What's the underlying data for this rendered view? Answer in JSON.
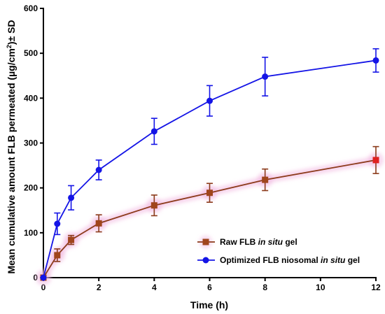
{
  "chart_data": {
    "type": "line",
    "title": "",
    "xlabel": "Time (h)",
    "ylabel_parts": [
      "Mean cumulative amount FLB permeated (µg/cm",
      "2",
      ")± SD"
    ],
    "x": [
      0,
      0.5,
      1,
      2,
      4,
      6,
      8,
      12
    ],
    "xticks": [
      0,
      2,
      4,
      6,
      8,
      10,
      12
    ],
    "yticks": [
      0,
      100,
      200,
      300,
      400,
      500,
      600
    ],
    "xlim": [
      0,
      12
    ],
    "ylim": [
      0,
      600
    ],
    "grid": false,
    "legend_position": "lower-right",
    "series": [
      {
        "name_parts": [
          {
            "text": "Raw FLB ",
            "italic": false
          },
          {
            "text": "in situ",
            "italic": true
          },
          {
            "text": " gel",
            "italic": false
          }
        ],
        "marker": "square",
        "line_color": "#8B3A1A",
        "marker_color": "#A0451C",
        "values": [
          0,
          50,
          84,
          121,
          161,
          189,
          218,
          262
        ],
        "errors": [
          0,
          14,
          10,
          19,
          23,
          21,
          24,
          30
        ]
      },
      {
        "name_parts": [
          {
            "text": "Optimized FLB niosomal ",
            "italic": false
          },
          {
            "text": "in situ",
            "italic": true
          },
          {
            "text": " gel",
            "italic": false
          }
        ],
        "marker": "circle",
        "line_color": "#1414E6",
        "marker_color": "#1414E6",
        "values": [
          0,
          120,
          178,
          240,
          326,
          394,
          448,
          484
        ],
        "errors": [
          0,
          24,
          27,
          22,
          29,
          34,
          43,
          26
        ]
      }
    ]
  }
}
